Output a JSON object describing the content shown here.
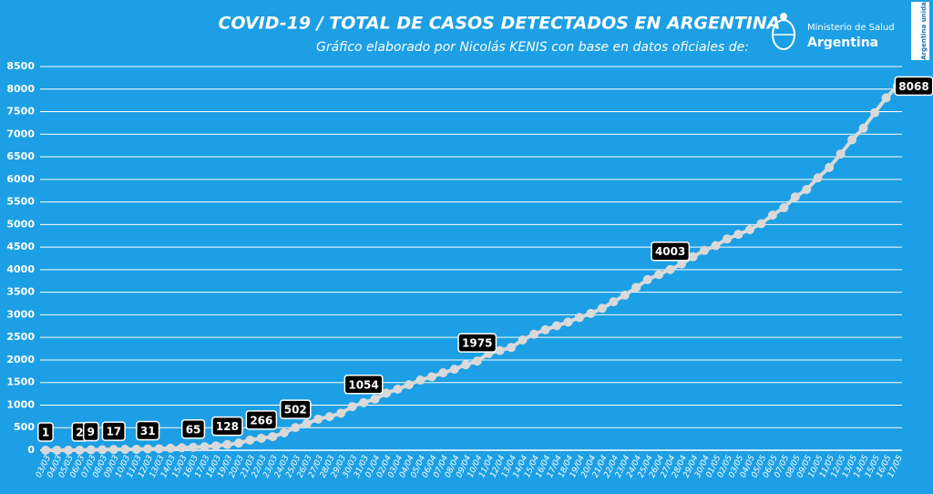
{
  "chart_data": {
    "type": "line",
    "title": "COVID-19  /  TOTAL DE CASOS DETECTADOS EN ARGENTINA",
    "subtitle": "Gráfico elaborado por Nicolás KENIS con base en datos oficiales de:",
    "logo_text": [
      "Ministerio de Salud",
      "Argentina",
      "Argentina unida"
    ],
    "categories": [
      "03/03",
      "04/03",
      "05/03",
      "06/03",
      "07/03",
      "08/03",
      "09/03",
      "10/03",
      "11/03",
      "12/03",
      "13/03",
      "14/03",
      "15/03",
      "16/03",
      "17/03",
      "18/03",
      "19/03",
      "20/03",
      "21/03",
      "22/03",
      "23/03",
      "24/03",
      "25/03",
      "26/03",
      "27/03",
      "28/03",
      "29/03",
      "30/03",
      "31/03",
      "01/04",
      "02/04",
      "03/04",
      "04/04",
      "05/04",
      "06/04",
      "07/04",
      "08/04",
      "09/04",
      "10/04",
      "11/04",
      "12/04",
      "13/04",
      "14/04",
      "15/04",
      "16/04",
      "17/04",
      "18/04",
      "19/04",
      "20/04",
      "21/04",
      "22/04",
      "23/04",
      "24/04",
      "25/04",
      "26/04",
      "27/04",
      "28/04",
      "29/04",
      "30/04",
      "01/05",
      "02/05",
      "03/05",
      "04/05",
      "05/05",
      "06/05",
      "07/05",
      "08/05",
      "09/05",
      "10/05",
      "11/05",
      "12/05",
      "13/05",
      "14/05",
      "15/05",
      "16/05",
      "17/05"
    ],
    "values": [
      1,
      1,
      1,
      2,
      9,
      12,
      17,
      19,
      21,
      31,
      34,
      45,
      56,
      65,
      79,
      97,
      128,
      158,
      225,
      266,
      301,
      387,
      502,
      589,
      690,
      745,
      820,
      966,
      1054,
      1133,
      1265,
      1353,
      1451,
      1554,
      1628,
      1715,
      1795,
      1894,
      1975,
      2142,
      2208,
      2277,
      2443,
      2571,
      2669,
      2758,
      2839,
      2941,
      3031,
      3144,
      3288,
      3435,
      3607,
      3780,
      3892,
      4003,
      4127,
      4285,
      4428,
      4532,
      4681,
      4783,
      4887,
      5020,
      5208,
      5371,
      5611,
      5776,
      6034,
      6265,
      6563,
      6879,
      7134,
      7479,
      7805,
      8068
    ],
    "value_labels": [
      "1",
      null,
      null,
      "2",
      "9",
      null,
      "17",
      null,
      null,
      "31",
      null,
      null,
      null,
      "65",
      null,
      null,
      "128",
      null,
      null,
      "266",
      null,
      null,
      "502",
      null,
      null,
      null,
      null,
      null,
      "1054",
      null,
      null,
      null,
      null,
      null,
      null,
      null,
      null,
      null,
      "1975",
      null,
      null,
      null,
      null,
      null,
      null,
      null,
      null,
      null,
      null,
      null,
      null,
      null,
      null,
      null,
      null,
      "4003",
      null,
      null,
      null,
      null,
      null,
      null,
      null,
      null,
      null,
      null,
      null,
      null,
      null,
      null,
      null,
      null,
      null,
      null,
      null,
      "8068"
    ],
    "color": "#d9d9d9",
    "ylim": [
      0,
      8500
    ],
    "yticks": [
      0,
      500,
      1000,
      1500,
      2000,
      2500,
      3000,
      3500,
      4000,
      4500,
      5000,
      5500,
      6000,
      6500,
      7000,
      7500,
      8000,
      8500
    ],
    "grid": true
  }
}
